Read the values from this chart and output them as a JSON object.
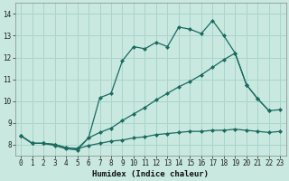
{
  "xlabel": "Humidex (Indice chaleur)",
  "bg_color": "#c8e8e0",
  "grid_color": "#aad4cc",
  "line_color": "#1a6b60",
  "xlim": [
    -0.5,
    23.5
  ],
  "ylim": [
    7.5,
    14.5
  ],
  "xticks": [
    0,
    1,
    2,
    3,
    4,
    5,
    6,
    7,
    8,
    9,
    10,
    11,
    12,
    13,
    14,
    15,
    16,
    17,
    18,
    19,
    20,
    21,
    22,
    23
  ],
  "yticks": [
    8,
    9,
    10,
    11,
    12,
    13,
    14
  ],
  "series_top_x": [
    0,
    1,
    2,
    3,
    4,
    5,
    6,
    7,
    8,
    9,
    10,
    11,
    12,
    13,
    14,
    15,
    16,
    17,
    18,
    19,
    20,
    21,
    22
  ],
  "series_top_y": [
    8.4,
    8.05,
    8.05,
    7.95,
    7.8,
    7.75,
    8.3,
    10.15,
    10.35,
    11.85,
    12.5,
    12.4,
    12.7,
    12.5,
    13.4,
    13.3,
    13.1,
    13.7,
    13.0,
    12.2,
    10.75,
    10.1,
    9.55
  ],
  "series_mid_x": [
    0,
    1,
    2,
    3,
    4,
    5,
    6,
    7,
    8,
    9,
    10,
    11,
    12,
    13,
    14,
    15,
    16,
    17,
    18,
    19,
    20,
    21,
    22,
    23
  ],
  "series_mid_y": [
    8.4,
    8.05,
    8.05,
    8.0,
    7.85,
    7.8,
    8.3,
    8.55,
    8.75,
    9.1,
    9.4,
    9.7,
    10.05,
    10.35,
    10.65,
    10.9,
    11.2,
    11.55,
    11.9,
    12.2,
    10.75,
    10.1,
    9.55,
    9.6
  ],
  "series_bot_x": [
    0,
    1,
    2,
    3,
    4,
    5,
    6,
    7,
    8,
    9,
    10,
    11,
    12,
    13,
    14,
    15,
    16,
    17,
    18,
    19,
    20,
    21,
    22,
    23
  ],
  "series_bot_y": [
    8.4,
    8.05,
    8.05,
    8.0,
    7.85,
    7.8,
    7.95,
    8.05,
    8.15,
    8.2,
    8.3,
    8.35,
    8.45,
    8.5,
    8.55,
    8.6,
    8.6,
    8.65,
    8.65,
    8.7,
    8.65,
    8.6,
    8.55,
    8.6
  ]
}
